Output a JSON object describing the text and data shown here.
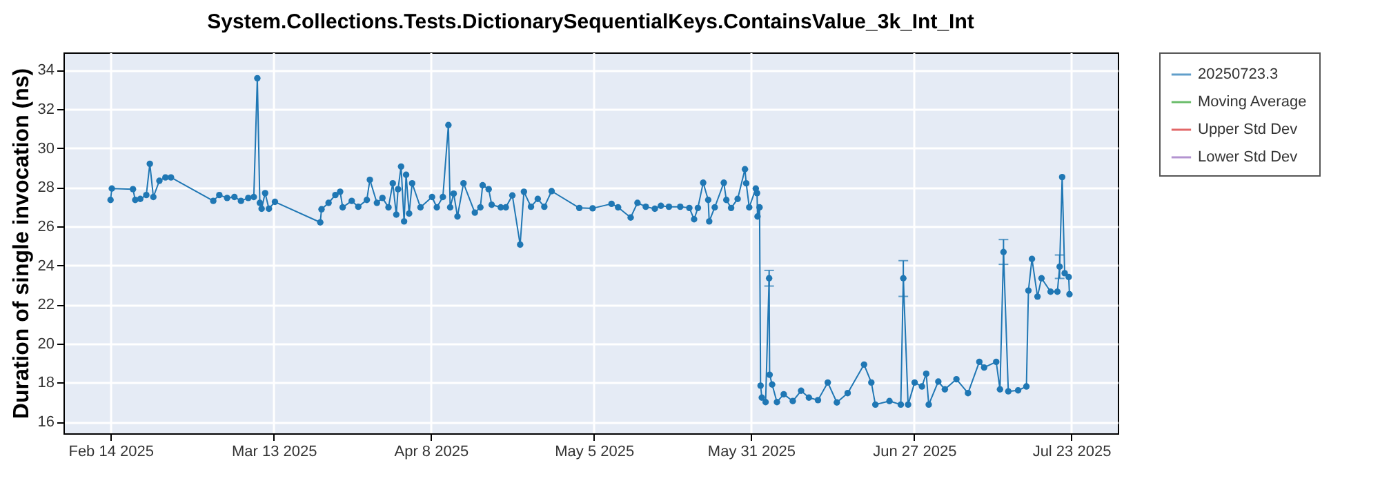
{
  "chart_data": {
    "type": "line",
    "title": "System.Collections.Tests.DictionarySequentialKeys.ContainsValue_3k_Int_Int",
    "ylabel": "Duration of single invocation (ns)",
    "x": [
      "2025-02-14T00:00",
      "2025-02-14T05:00",
      "2025-02-17T17:00",
      "2025-02-18T02:00",
      "2025-02-18T22:00",
      "2025-02-19T22:00",
      "2025-02-20T12:00",
      "2025-02-21T02:00",
      "2025-02-22T02:00",
      "2025-02-23T02:00",
      "2025-02-24T00:00",
      "2025-03-03T00:00",
      "2025-03-04T00:00",
      "2025-03-05T07:00",
      "2025-03-06T12:00",
      "2025-03-07T14:00",
      "2025-03-08T19:00",
      "2025-03-09T17:00",
      "2025-03-10T07:00",
      "2025-03-10T17:00",
      "2025-03-11T00:00",
      "2025-03-11T14:00",
      "2025-03-12T05:00",
      "2025-03-13T05:00",
      "2025-03-20T17:00",
      "2025-03-20T22:00",
      "2025-03-22T02:00",
      "2025-03-23T05:00",
      "2025-03-24T00:00",
      "2025-03-24T10:00",
      "2025-03-25T22:00",
      "2025-03-27T00:00",
      "2025-03-28T10:00",
      "2025-03-28T22:00",
      "2025-03-30T02:00",
      "2025-03-31T00:00",
      "2025-04-01T00:00",
      "2025-04-01T17:00",
      "2025-04-02T07:00",
      "2025-04-02T14:00",
      "2025-04-03T02:00",
      "2025-04-03T14:00",
      "2025-04-03T22:00",
      "2025-04-04T10:00",
      "2025-04-04T22:00",
      "2025-04-06T07:00",
      "2025-04-08T05:00",
      "2025-04-09T00:00",
      "2025-04-10T00:00",
      "2025-04-10T22:00",
      "2025-04-11T05:00",
      "2025-04-11T19:00",
      "2025-04-12T10:00",
      "2025-04-13T10:00",
      "2025-04-15T07:00",
      "2025-04-16T05:00",
      "2025-04-16T14:00",
      "2025-04-17T14:00",
      "2025-04-18T02:00",
      "2025-04-19T14:00",
      "2025-04-20T10:00",
      "2025-04-21T12:00",
      "2025-04-22T19:00",
      "2025-04-23T10:00",
      "2025-04-24T14:00",
      "2025-04-25T17:00",
      "2025-04-26T19:00",
      "2025-04-28T00:00",
      "2025-05-02T14:00",
      "2025-05-04T19:00",
      "2025-05-07T22:00",
      "2025-05-09T00:00",
      "2025-05-11T02:00",
      "2025-05-12T05:00",
      "2025-05-13T14:00",
      "2025-05-15T02:00",
      "2025-05-16T02:00",
      "2025-05-17T10:00",
      "2025-05-19T07:00",
      "2025-05-20T19:00",
      "2025-05-21T14:00",
      "2025-05-22T05:00",
      "2025-05-23T02:00",
      "2025-05-23T22:00",
      "2025-05-24T02:00",
      "2025-05-25T00:00",
      "2025-05-26T12:00",
      "2025-05-26T22:00",
      "2025-05-27T17:00",
      "2025-05-28T19:00",
      "2025-05-30T00:00",
      "2025-05-30T05:00",
      "2025-05-30T17:00",
      "2025-05-31T19:00",
      "2025-06-01T00:00",
      "2025-06-01T02:00",
      "2025-06-01T10:00",
      "2025-06-01T14:00",
      "2025-06-01T19:00",
      "2025-06-02T10:00",
      "2025-06-03T00:00",
      "2025-06-03T02:00",
      "2025-06-03T12:00",
      "2025-06-04T07:00",
      "2025-06-05T10:00",
      "2025-06-06T22:00",
      "2025-06-08T07:00",
      "2025-06-09T14:00",
      "2025-06-11T02:00",
      "2025-06-12T17:00",
      "2025-06-14T05:00",
      "2025-06-16T00:00",
      "2025-06-18T17:00",
      "2025-06-19T22:00",
      "2025-06-20T14:00",
      "2025-06-22T22:00",
      "2025-06-24T19:00",
      "2025-06-25T05:00",
      "2025-06-26T00:00",
      "2025-06-27T02:00",
      "2025-06-28T07:00",
      "2025-06-29T00:00",
      "2025-06-29T10:00",
      "2025-07-01T00:00",
      "2025-07-02T02:00",
      "2025-07-04T00:00",
      "2025-07-05T22:00",
      "2025-07-07T19:00",
      "2025-07-08T14:00",
      "2025-07-10T14:00",
      "2025-07-11T05:00",
      "2025-07-11T19:00",
      "2025-07-12T14:00",
      "2025-07-14T05:00",
      "2025-07-15T14:00",
      "2025-07-15T22:00",
      "2025-07-16T12:00",
      "2025-07-17T10:00",
      "2025-07-18T02:00",
      "2025-07-19T14:00",
      "2025-07-20T17:00",
      "2025-07-21T02:00",
      "2025-07-21T12:00",
      "2025-07-21T22:00",
      "2025-07-22T14:00",
      "2025-07-22T17:00"
    ],
    "series": [
      {
        "name": "20250723.3",
        "color": "#1f77b4",
        "values": [
          27.35,
          27.93,
          27.9,
          27.35,
          27.4,
          27.6,
          29.2,
          27.5,
          28.33,
          28.5,
          28.5,
          27.3,
          27.6,
          27.45,
          27.5,
          27.3,
          27.45,
          27.5,
          33.58,
          27.2,
          26.9,
          27.7,
          26.9,
          27.25,
          26.2,
          26.87,
          27.2,
          27.6,
          27.77,
          26.97,
          27.3,
          27.0,
          27.35,
          28.38,
          27.2,
          27.45,
          26.97,
          28.2,
          26.6,
          27.9,
          29.06,
          26.25,
          28.64,
          26.65,
          28.2,
          26.97,
          27.5,
          26.97,
          27.5,
          31.18,
          26.97,
          27.67,
          26.5,
          28.2,
          26.7,
          26.97,
          28.1,
          27.9,
          27.1,
          26.97,
          26.97,
          27.58,
          25.06,
          27.77,
          27.0,
          27.4,
          27.0,
          27.8,
          26.94,
          26.92,
          27.15,
          26.97,
          26.45,
          27.2,
          27.0,
          26.9,
          27.05,
          27.0,
          27.0,
          26.94,
          26.36,
          26.94,
          28.23,
          27.35,
          26.25,
          26.97,
          28.23,
          27.35,
          26.94,
          27.4,
          28.92,
          28.2,
          26.97,
          27.93,
          27.7,
          26.5,
          26.97,
          17.84,
          17.23,
          17.0,
          23.34,
          18.4,
          17.9,
          17.0,
          17.4,
          17.05,
          17.58,
          17.23,
          17.1,
          18.0,
          16.98,
          17.46,
          18.92,
          18.0,
          16.87,
          17.05,
          16.87,
          23.34,
          16.87,
          18.0,
          17.8,
          18.45,
          16.87,
          18.05,
          17.65,
          18.17,
          17.46,
          19.06,
          18.77,
          19.06,
          17.65,
          24.68,
          17.55,
          17.6,
          17.8,
          22.71,
          24.33,
          22.4,
          23.34,
          22.65,
          22.65,
          23.93,
          28.52,
          23.6,
          23.4,
          22.52
        ],
        "errors": [
          null,
          null,
          null,
          null,
          null,
          null,
          null,
          null,
          null,
          null,
          null,
          null,
          null,
          null,
          null,
          null,
          null,
          null,
          null,
          null,
          null,
          null,
          null,
          null,
          null,
          null,
          null,
          null,
          null,
          null,
          null,
          null,
          null,
          null,
          null,
          null,
          null,
          null,
          null,
          null,
          null,
          null,
          null,
          null,
          null,
          null,
          null,
          null,
          null,
          null,
          null,
          null,
          null,
          null,
          null,
          null,
          null,
          null,
          null,
          null,
          null,
          null,
          null,
          null,
          null,
          null,
          null,
          null,
          null,
          null,
          null,
          null,
          null,
          null,
          null,
          null,
          null,
          null,
          null,
          null,
          null,
          null,
          null,
          null,
          null,
          null,
          null,
          null,
          null,
          null,
          null,
          null,
          null,
          null,
          null,
          null,
          null,
          null,
          null,
          null,
          [
            22.94,
            23.74
          ],
          null,
          null,
          null,
          null,
          null,
          null,
          null,
          null,
          null,
          null,
          null,
          null,
          null,
          null,
          null,
          null,
          [
            22.41,
            24.24
          ],
          null,
          null,
          null,
          null,
          null,
          null,
          null,
          null,
          null,
          null,
          null,
          null,
          null,
          [
            24.05,
            25.32
          ],
          null,
          null,
          null,
          null,
          null,
          null,
          null,
          null,
          null,
          0.6,
          null,
          null,
          null,
          null
        ]
      },
      {
        "name": "Moving Average",
        "color": "#2ca02c",
        "values": [
          null,
          null,
          null,
          null,
          null,
          null,
          null,
          null,
          null,
          null,
          null,
          null,
          null,
          null,
          null,
          null,
          null,
          null,
          null,
          null,
          null,
          null,
          null,
          null,
          null,
          null,
          null,
          null,
          null,
          null,
          null,
          null,
          null,
          null,
          null,
          null,
          null,
          null,
          null,
          null,
          null,
          null,
          null,
          null,
          null,
          null,
          null,
          null,
          null,
          null,
          null,
          null,
          null,
          null,
          null,
          null,
          null,
          null,
          null,
          null,
          null,
          null,
          null,
          null,
          null,
          null,
          null,
          null,
          null,
          null,
          null,
          null,
          null,
          null,
          null,
          null,
          null,
          null,
          null,
          null,
          null,
          null,
          null,
          null,
          null,
          null,
          null,
          null,
          null,
          null,
          null,
          null,
          null,
          null,
          null,
          null,
          null,
          null,
          null,
          null,
          null,
          null,
          null,
          null,
          null,
          null,
          null,
          null,
          null,
          null,
          null,
          null,
          null,
          null,
          null,
          null,
          null,
          null,
          null,
          null,
          null,
          null,
          null,
          null,
          null,
          null,
          null,
          null,
          null,
          null,
          null,
          null,
          null,
          null,
          null,
          null,
          null,
          null,
          null,
          null,
          null,
          null,
          null,
          null,
          null,
          null
        ]
      },
      {
        "name": "Upper Std Dev",
        "color": "#d62728",
        "values": [
          null,
          null,
          null,
          null,
          null,
          null,
          null,
          null,
          null,
          null,
          null,
          null,
          null,
          null,
          null,
          null,
          null,
          null,
          null,
          null,
          null,
          null,
          null,
          null,
          null,
          null,
          null,
          null,
          null,
          null,
          null,
          null,
          null,
          null,
          null,
          null,
          null,
          null,
          null,
          null,
          null,
          null,
          null,
          null,
          null,
          null,
          null,
          null,
          null,
          null,
          null,
          null,
          null,
          null,
          null,
          null,
          null,
          null,
          null,
          null,
          null,
          null,
          null,
          null,
          null,
          null,
          null,
          null,
          null,
          null,
          null,
          null,
          null,
          null,
          null,
          null,
          null,
          null,
          null,
          null,
          null,
          null,
          null,
          null,
          null,
          null,
          null,
          null,
          null,
          null,
          null,
          null,
          null,
          null,
          null,
          null,
          null,
          null,
          null,
          null,
          null,
          null,
          null,
          null,
          null,
          null,
          null,
          null,
          null,
          null,
          null,
          null,
          null,
          null,
          null,
          null,
          null,
          null,
          null,
          null,
          null,
          null,
          null,
          null,
          null,
          null,
          null,
          null,
          null,
          null,
          null,
          null,
          null,
          null,
          null,
          null,
          null,
          null,
          null,
          null,
          null,
          null,
          null,
          null,
          null,
          null
        ]
      },
      {
        "name": "Lower Std Dev",
        "color": "#9467bd",
        "values": [
          null,
          null,
          null,
          null,
          null,
          null,
          null,
          null,
          null,
          null,
          null,
          null,
          null,
          null,
          null,
          null,
          null,
          null,
          null,
          null,
          null,
          null,
          null,
          null,
          null,
          null,
          null,
          null,
          null,
          null,
          null,
          null,
          null,
          null,
          null,
          null,
          null,
          null,
          null,
          null,
          null,
          null,
          null,
          null,
          null,
          null,
          null,
          null,
          null,
          null,
          null,
          null,
          null,
          null,
          null,
          null,
          null,
          null,
          null,
          null,
          null,
          null,
          null,
          null,
          null,
          null,
          null,
          null,
          null,
          null,
          null,
          null,
          null,
          null,
          null,
          null,
          null,
          null,
          null,
          null,
          null,
          null,
          null,
          null,
          null,
          null,
          null,
          null,
          null,
          null,
          null,
          null,
          null,
          null,
          null,
          null,
          null,
          null,
          null,
          null,
          null,
          null,
          null,
          null,
          null,
          null,
          null,
          null,
          null,
          null,
          null,
          null,
          null,
          null,
          null,
          null,
          null,
          null,
          null,
          null,
          null,
          null,
          null,
          null,
          null,
          null,
          null,
          null,
          null,
          null,
          null,
          null,
          null,
          null,
          null,
          null,
          null,
          null,
          null,
          null,
          null,
          null,
          null,
          null,
          null,
          null
        ]
      }
    ],
    "xlim": [
      "2025-02-06T05:00",
      "2025-07-30T17:00"
    ],
    "xticks": [
      {
        "value": "2025-02-14",
        "label": "Feb 14 2025"
      },
      {
        "value": "2025-03-13",
        "label": "Mar 13 2025"
      },
      {
        "value": "2025-04-08",
        "label": "Apr 8 2025"
      },
      {
        "value": "2025-05-05",
        "label": "May 5 2025"
      },
      {
        "value": "2025-05-31",
        "label": "May 31 2025"
      },
      {
        "value": "2025-06-27",
        "label": "Jun 27 2025"
      },
      {
        "value": "2025-07-23",
        "label": "Jul 23 2025"
      }
    ],
    "ylim": [
      15.4,
      34.9
    ],
    "yticks": [
      16,
      18,
      20,
      22,
      24,
      26,
      28,
      30,
      32,
      34
    ],
    "grid": true,
    "legend": "right",
    "marker": "circle",
    "line_style": "solid"
  }
}
